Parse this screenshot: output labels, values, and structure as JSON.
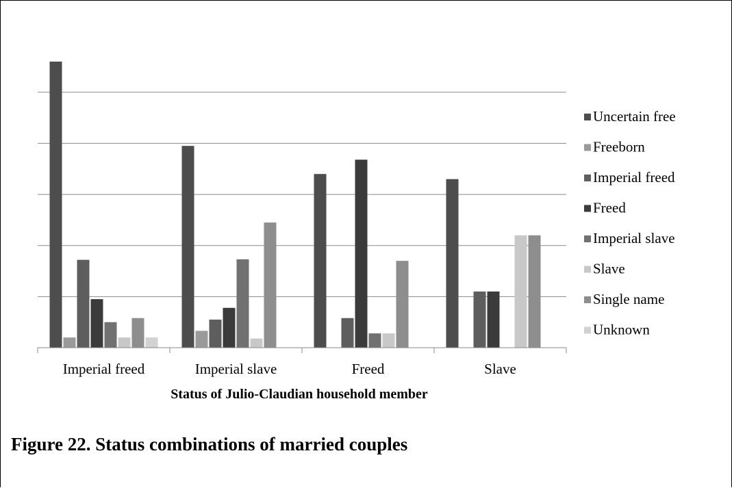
{
  "chart_data": {
    "type": "bar",
    "title": "",
    "xlabel": "Status of Julio-Claudian household member",
    "ylabel": "",
    "ylim": [
      0,
      56
    ],
    "grid": true,
    "legend_position": "right",
    "categories": [
      "Imperial freed",
      "Imperial slave",
      "Freed",
      "Slave"
    ],
    "series": [
      {
        "name": "Uncertain free",
        "color": "#4d4d4d",
        "values": [
          56,
          39.5,
          34,
          33
        ]
      },
      {
        "name": "Freeborn",
        "color": "#9a9a9a",
        "values": [
          2,
          3.3,
          0,
          0
        ]
      },
      {
        "name": "Imperial freed",
        "color": "#5e5e5e",
        "values": [
          17.2,
          5.5,
          5.8,
          11
        ]
      },
      {
        "name": "Freed",
        "color": "#3b3b3b",
        "values": [
          9.5,
          7.8,
          36.8,
          11
        ]
      },
      {
        "name": "Imperial slave",
        "color": "#717171",
        "values": [
          5,
          17.3,
          2.8,
          0
        ]
      },
      {
        "name": "Slave",
        "color": "#c8c8c8",
        "values": [
          2,
          1.8,
          2.8,
          22
        ]
      },
      {
        "name": "Single name",
        "color": "#8e8e8e",
        "values": [
          5.8,
          24.5,
          17,
          22
        ]
      },
      {
        "name": "Unknown",
        "color": "#d2d2d2",
        "values": [
          2,
          0,
          0,
          0
        ]
      }
    ]
  },
  "caption": "Figure 22. Status combinations of married couples"
}
